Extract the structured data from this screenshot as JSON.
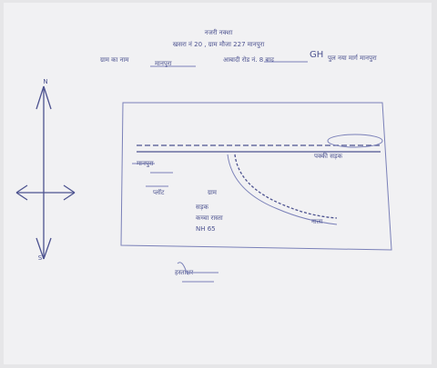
{
  "header": {
    "title": "नजरी नक्शा",
    "line1": "खसरा नं 20 , ग्राम मौजा 227 मानपुरा",
    "line2_label": "ग्राम का नाम",
    "line2_village": "मानपुरा",
    "line2_middle": "आबादी रोड नं. 8 बाद",
    "line2_mark": "GH",
    "line2_end": "पुल नया मार्ग मानपुरा"
  },
  "compass": {
    "north": "N",
    "south": "S"
  },
  "map_labels": [
    "मानपुरा",
    "प्लॉट",
    "पक्की सड़क",
    "ग्राम",
    "सड़क",
    "कच्चा रास्ता",
    "NH 65",
    "नाला"
  ],
  "signature": "हस्ताक्षर"
}
